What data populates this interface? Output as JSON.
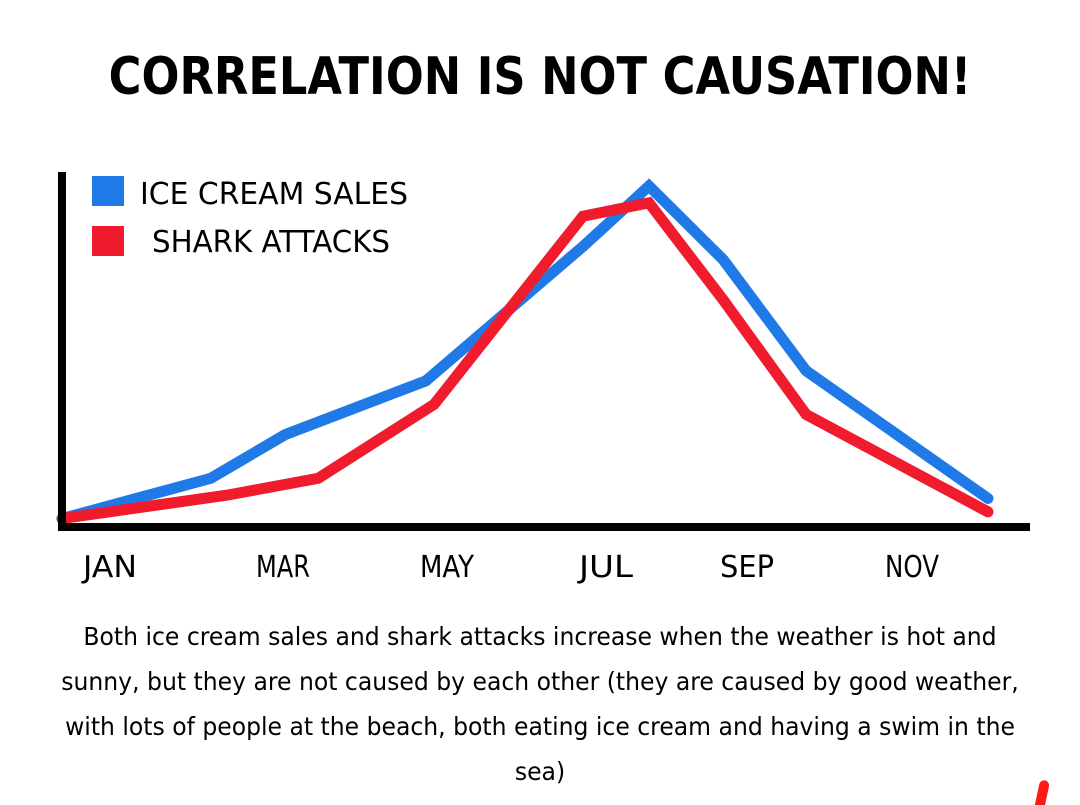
{
  "title": "CORRELATION IS NOT CAUSATION!",
  "caption": "Both ice cream sales and shark attacks increase when the weather is hot and sunny, but they are not caused by each other (they are caused by good weather, with lots of people at the beach, both eating ice cream and having a swim in the sea)",
  "colors": {
    "ice_cream": "#1f7ae8",
    "shark": "#f01c2e",
    "axis": "#000000"
  },
  "chart_data": {
    "type": "line",
    "title": "CORRELATION IS NOT CAUSATION!",
    "xlabel": "",
    "ylabel": "",
    "x_tick_labels": [
      "JAN",
      "MAR",
      "MAY",
      "JUL",
      "SEP",
      "NOV"
    ],
    "x_tick_positions": [
      1,
      3,
      5,
      7,
      9,
      11
    ],
    "xlim": [
      1,
      12.5
    ],
    "ylim": [
      0,
      100
    ],
    "grid": false,
    "legend_position": "top-left",
    "series": [
      {
        "name": "ICE CREAM SALES",
        "color": "#1f7ae8",
        "x": [
          1,
          2.8,
          3.7,
          5.4,
          7.3,
          8.1,
          9.0,
          10.0,
          12.2
        ],
        "y": [
          1,
          13,
          26,
          42,
          82,
          100,
          78,
          45,
          7
        ]
      },
      {
        "name": "SHARK ATTACKS",
        "color": "#f01c2e",
        "x": [
          1,
          3.0,
          4.1,
          5.5,
          7.3,
          8.1,
          9.0,
          10.0,
          12.2
        ],
        "y": [
          1,
          8,
          13,
          35,
          91,
          95,
          66,
          32,
          3
        ]
      }
    ]
  }
}
